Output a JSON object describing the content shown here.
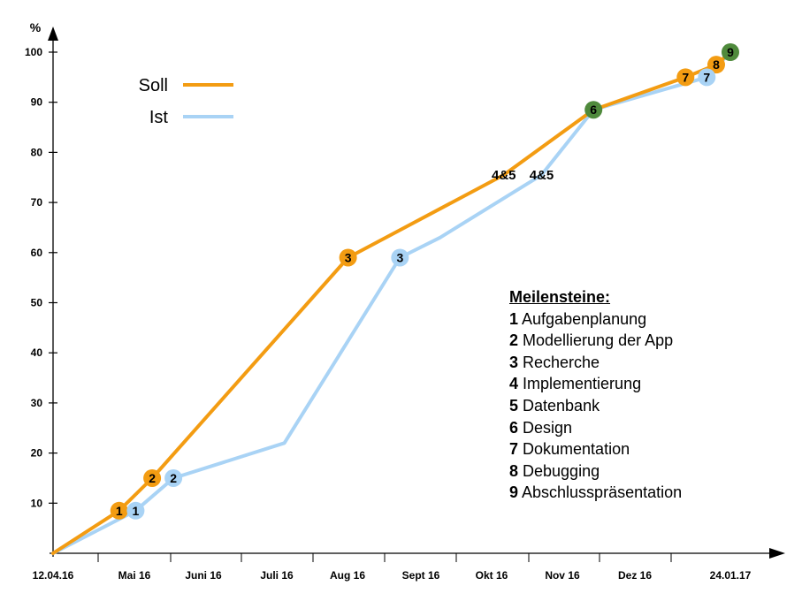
{
  "chart_data": {
    "type": "line",
    "title": "",
    "ylabel": "%",
    "xlabel": "",
    "ylim": [
      0,
      100
    ],
    "yticks": [
      10,
      20,
      30,
      40,
      50,
      60,
      70,
      80,
      90,
      100
    ],
    "x_tick_labels": [
      "12.04.16",
      "Mai 16",
      "Juni 16",
      "Juli 16",
      "Aug 16",
      "Sept 16",
      "Okt 16",
      "Nov 16",
      "Dez 16",
      "24.01.17"
    ],
    "x_tick_dates": [
      "2016-04-12",
      "2016-05-15",
      "2016-06-15",
      "2016-07-15",
      "2016-08-15",
      "2016-09-15",
      "2016-10-15",
      "2016-11-15",
      "2016-12-15",
      "2017-01-24"
    ],
    "legend_position": "top-left",
    "colors": {
      "soll": "#f39c12",
      "ist": "#a9d3f5",
      "design": "#4f8a3c"
    },
    "series": [
      {
        "name": "Soll",
        "color": "#f39c12",
        "points": [
          {
            "x": "2016-04-12",
            "y": 0
          },
          {
            "x": "2016-05-10",
            "y": 8.5,
            "label": "1"
          },
          {
            "x": "2016-05-24",
            "y": 15,
            "label": "2"
          },
          {
            "x": "2016-08-15",
            "y": 59,
            "label": "3"
          },
          {
            "x": "2016-10-20",
            "y": 75.5,
            "label": "4&5"
          },
          {
            "x": "2016-11-27",
            "y": 88.5
          },
          {
            "x": "2017-01-05",
            "y": 95,
            "label": "7"
          },
          {
            "x": "2017-01-18",
            "y": 97.5,
            "label": "8"
          },
          {
            "x": "2017-01-24",
            "y": 100
          }
        ]
      },
      {
        "name": "Ist",
        "color": "#a9d3f5",
        "points": [
          {
            "x": "2016-04-12",
            "y": 0
          },
          {
            "x": "2016-05-17",
            "y": 8.5,
            "label": "1"
          },
          {
            "x": "2016-06-02",
            "y": 15,
            "label": "2"
          },
          {
            "x": "2016-07-19",
            "y": 22
          },
          {
            "x": "2016-09-06",
            "y": 59,
            "label": "3"
          },
          {
            "x": "2016-09-23",
            "y": 63
          },
          {
            "x": "2016-11-05",
            "y": 75.5,
            "label": "4&5"
          },
          {
            "x": "2016-11-27",
            "y": 88.5
          },
          {
            "x": "2017-01-14",
            "y": 95,
            "label": "7"
          },
          {
            "x": "2017-01-24",
            "y": 100
          }
        ]
      }
    ],
    "shared_milestones": [
      {
        "x": "2016-11-27",
        "y": 88.5,
        "label": "6"
      },
      {
        "x": "2017-01-24",
        "y": 100,
        "label": "9"
      }
    ],
    "legend": {
      "soll": "Soll",
      "ist": "Ist"
    },
    "milestones_box": {
      "title": "Meilensteine:",
      "items": [
        {
          "num": "1",
          "text": "Aufgabenplanung"
        },
        {
          "num": "2",
          "text": "Modellierung der App"
        },
        {
          "num": "3",
          "text": "Recherche"
        },
        {
          "num": "4",
          "text": "Implementierung"
        },
        {
          "num": "5",
          "text": "Datenbank"
        },
        {
          "num": "6",
          "text": "Design"
        },
        {
          "num": "7",
          "text": "Dokumentation"
        },
        {
          "num": "8",
          "text": "Debugging"
        },
        {
          "num": "9",
          "text": "Abschlusspräsentation"
        }
      ]
    }
  }
}
